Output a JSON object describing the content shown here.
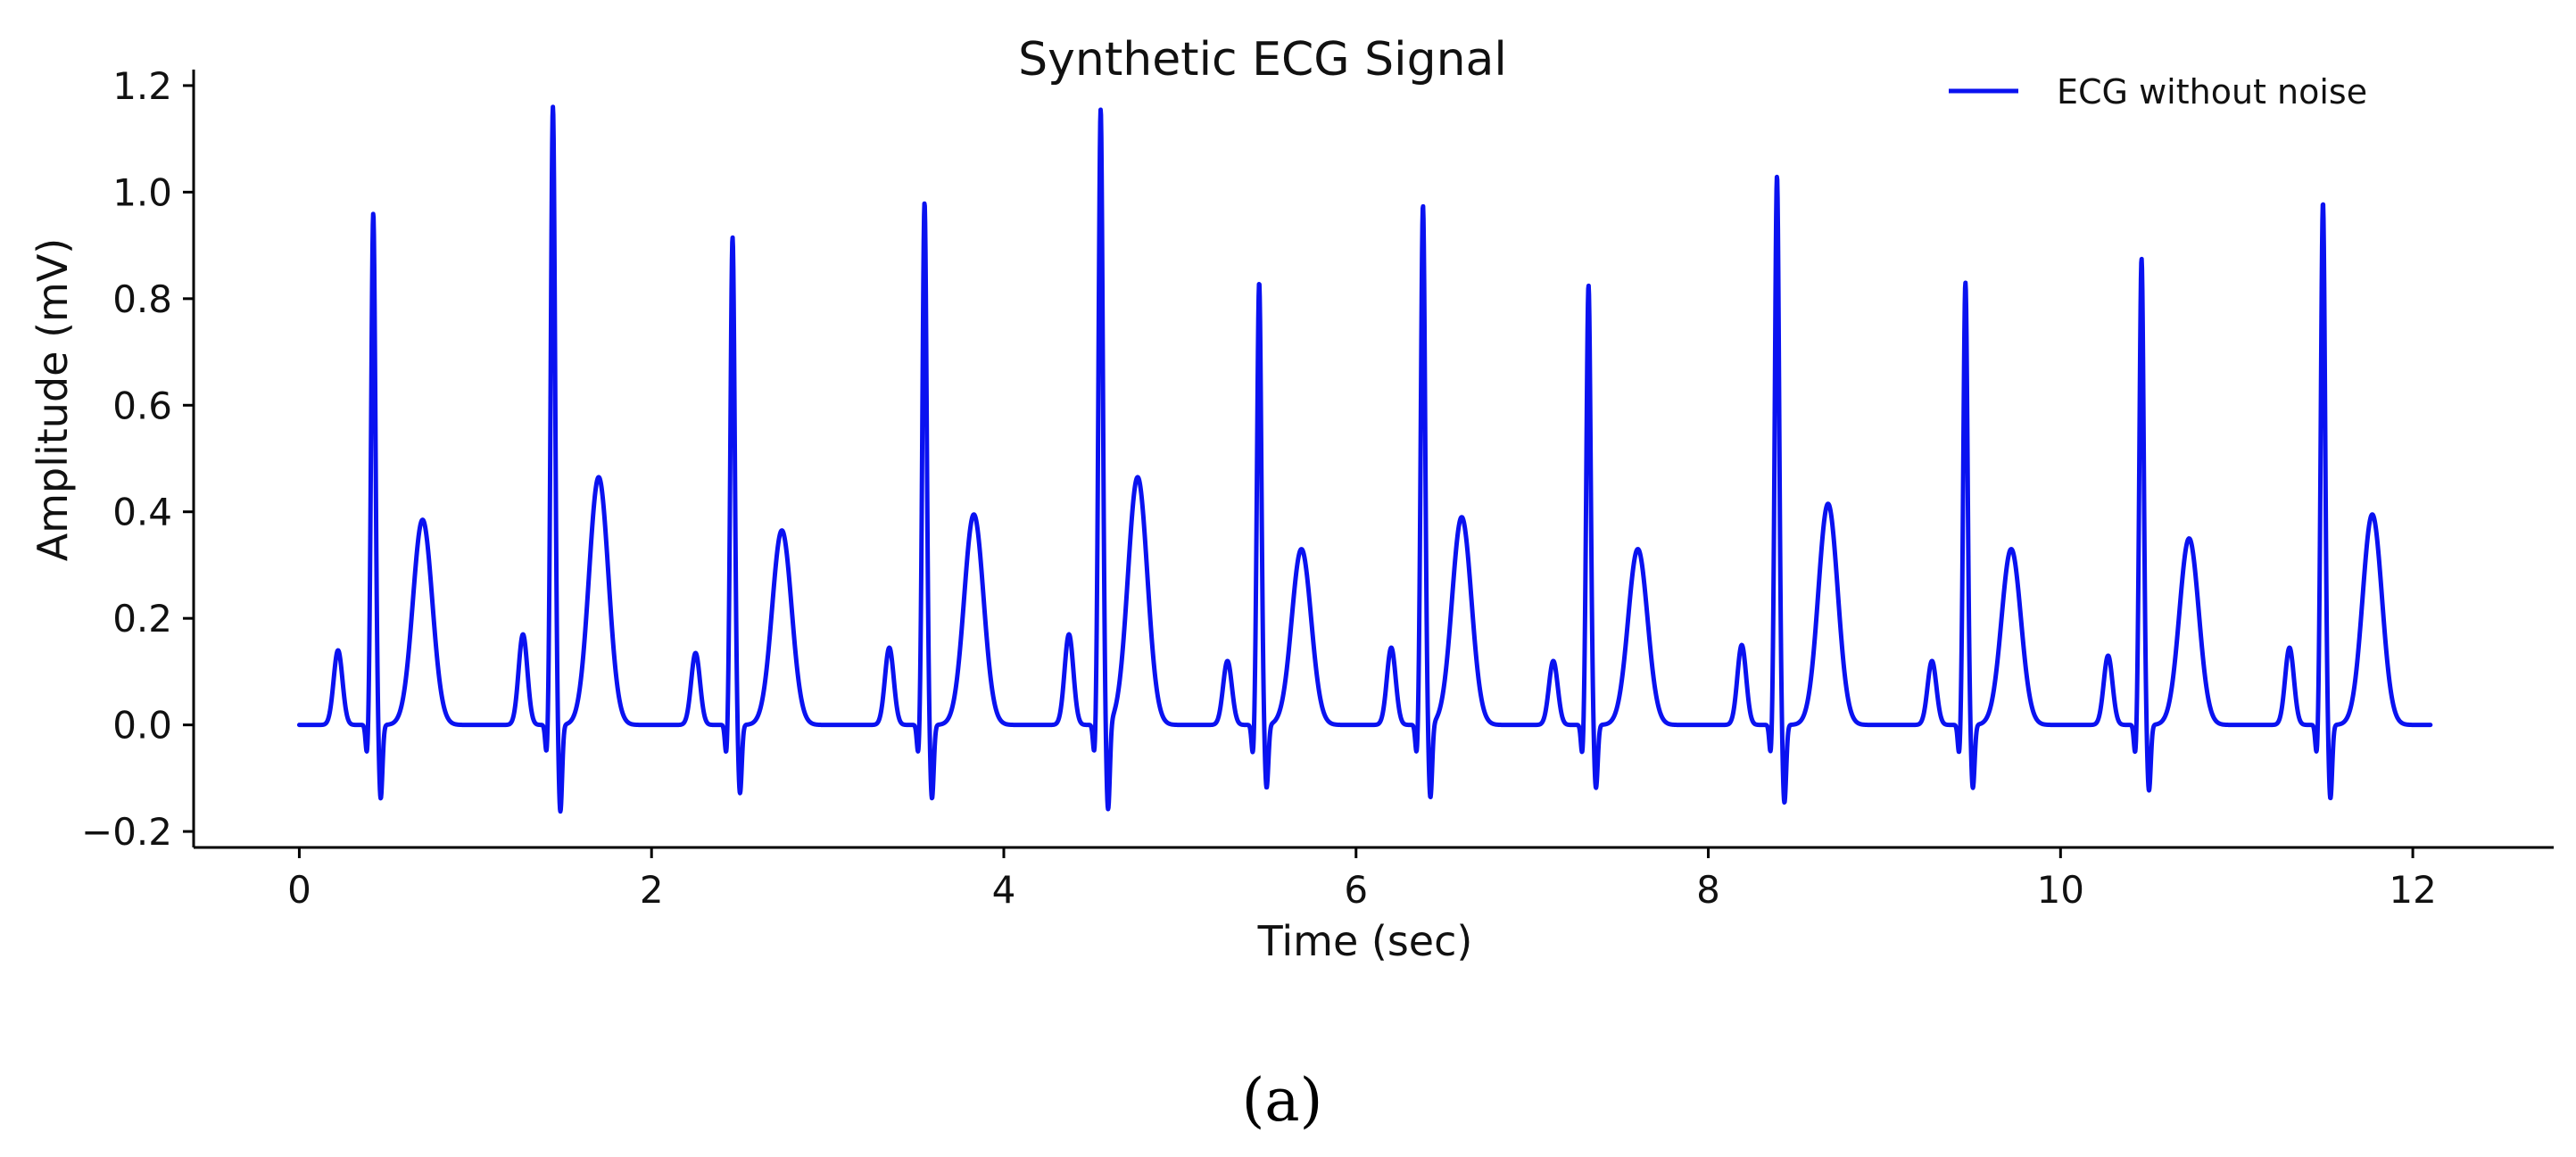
{
  "caption": "(a)",
  "chart_data": {
    "type": "line",
    "title": "Synthetic ECG Signal",
    "xlabel": "Time (sec)",
    "ylabel": "Amplitude (mV)",
    "xlim": [
      -0.6,
      12.8
    ],
    "ylim": [
      -0.23,
      1.23
    ],
    "x_ticks": [
      0,
      2,
      4,
      6,
      8,
      10,
      12
    ],
    "y_ticks": [
      -0.2,
      0.0,
      0.2,
      0.4,
      0.6,
      0.8,
      1.0,
      1.2
    ],
    "x_tick_labels": [
      "0",
      "2",
      "4",
      "6",
      "8",
      "10",
      "12"
    ],
    "y_tick_labels": [
      "−0.2",
      "0.0",
      "0.2",
      "0.4",
      "0.6",
      "0.8",
      "1.0",
      "1.2"
    ],
    "grid": false,
    "legend_position": "top-right",
    "x_range": [
      0,
      12.1
    ],
    "series": [
      {
        "name": "ECG without noise",
        "color": "#0a12f0",
        "beats": [
          {
            "p_t": 0.22,
            "p_amp": 0.14,
            "r_t": 0.42,
            "r_amp": 0.96,
            "s_amp": -0.14,
            "t_t": 0.7,
            "t_amp": 0.385
          },
          {
            "p_t": 1.27,
            "p_amp": 0.17,
            "r_t": 1.44,
            "r_amp": 1.16,
            "s_amp": -0.165,
            "t_t": 1.7,
            "t_amp": 0.465
          },
          {
            "p_t": 2.25,
            "p_amp": 0.135,
            "r_t": 2.46,
            "r_amp": 0.915,
            "s_amp": -0.13,
            "t_t": 2.74,
            "t_amp": 0.365
          },
          {
            "p_t": 3.35,
            "p_amp": 0.145,
            "r_t": 3.55,
            "r_amp": 0.98,
            "s_amp": -0.14,
            "t_t": 3.83,
            "t_amp": 0.395
          },
          {
            "p_t": 4.37,
            "p_amp": 0.17,
            "r_t": 4.55,
            "r_amp": 1.155,
            "s_amp": -0.165,
            "t_t": 4.76,
            "t_amp": 0.465
          },
          {
            "p_t": 5.27,
            "p_amp": 0.12,
            "r_t": 5.45,
            "r_amp": 0.83,
            "s_amp": -0.12,
            "t_t": 5.69,
            "t_amp": 0.33
          },
          {
            "p_t": 6.2,
            "p_amp": 0.145,
            "r_t": 6.38,
            "r_amp": 0.975,
            "s_amp": -0.14,
            "t_t": 6.6,
            "t_amp": 0.39
          },
          {
            "p_t": 7.12,
            "p_amp": 0.12,
            "r_t": 7.32,
            "r_amp": 0.825,
            "s_amp": -0.12,
            "t_t": 7.6,
            "t_amp": 0.33
          },
          {
            "p_t": 8.19,
            "p_amp": 0.15,
            "r_t": 8.39,
            "r_amp": 1.03,
            "s_amp": -0.148,
            "t_t": 8.68,
            "t_amp": 0.415
          },
          {
            "p_t": 9.27,
            "p_amp": 0.12,
            "r_t": 9.46,
            "r_amp": 0.83,
            "s_amp": -0.12,
            "t_t": 9.72,
            "t_amp": 0.33
          },
          {
            "p_t": 10.27,
            "p_amp": 0.13,
            "r_t": 10.46,
            "r_amp": 0.875,
            "s_amp": -0.125,
            "t_t": 10.73,
            "t_amp": 0.35
          },
          {
            "p_t": 11.3,
            "p_amp": 0.145,
            "r_t": 11.49,
            "r_amp": 0.98,
            "s_amp": -0.14,
            "t_t": 11.77,
            "t_amp": 0.395
          }
        ]
      }
    ]
  }
}
